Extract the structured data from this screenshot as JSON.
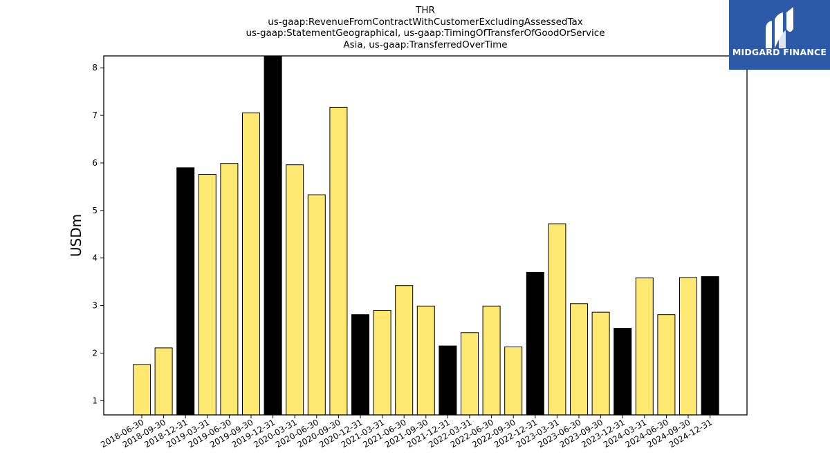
{
  "title_lines": [
    "THR",
    "us-gaap:RevenueFromContractWithCustomerExcludingAssessedTax",
    "us-gaap:StatementGeographical, us-gaap:TimingOfTransferOfGoodOrService",
    "Asia, us-gaap:TransferredOverTime"
  ],
  "logo": {
    "text": "MIDGARD FINANCE",
    "icon": "midgard-logo-icon",
    "bg_color": "#2d5aa8"
  },
  "chart_data": {
    "type": "bar",
    "ylabel": "USDm",
    "xlabel": "",
    "ylim": [
      0.7,
      8.25
    ],
    "yticks": [
      1,
      2,
      3,
      4,
      5,
      6,
      7,
      8
    ],
    "colors": {
      "quarter": "#fde971",
      "year_end": "#000000"
    },
    "categories": [
      "2018-06-30",
      "2018-09-30",
      "2018-12-31",
      "2019-03-31",
      "2019-06-30",
      "2019-09-30",
      "2019-12-31",
      "2020-03-31",
      "2020-06-30",
      "2020-09-30",
      "2020-12-31",
      "2021-03-31",
      "2021-06-30",
      "2021-09-30",
      "2021-12-31",
      "2022-03-31",
      "2022-06-30",
      "2022-09-30",
      "2022-12-31",
      "2023-03-31",
      "2023-06-30",
      "2023-09-30",
      "2023-12-31",
      "2024-03-31",
      "2024-06-30",
      "2024-09-30",
      "2024-12-31"
    ],
    "values": [
      1.76,
      2.11,
      5.9,
      5.76,
      5.99,
      7.05,
      8.25,
      5.96,
      5.33,
      7.17,
      2.81,
      2.9,
      3.42,
      2.99,
      2.15,
      2.43,
      2.99,
      2.13,
      3.7,
      4.72,
      3.04,
      2.86,
      2.52,
      3.58,
      2.81,
      3.59,
      3.61
    ],
    "highlight": [
      false,
      false,
      true,
      false,
      false,
      false,
      true,
      false,
      false,
      false,
      true,
      false,
      false,
      false,
      true,
      false,
      false,
      false,
      true,
      false,
      false,
      false,
      true,
      false,
      false,
      false,
      true
    ]
  }
}
